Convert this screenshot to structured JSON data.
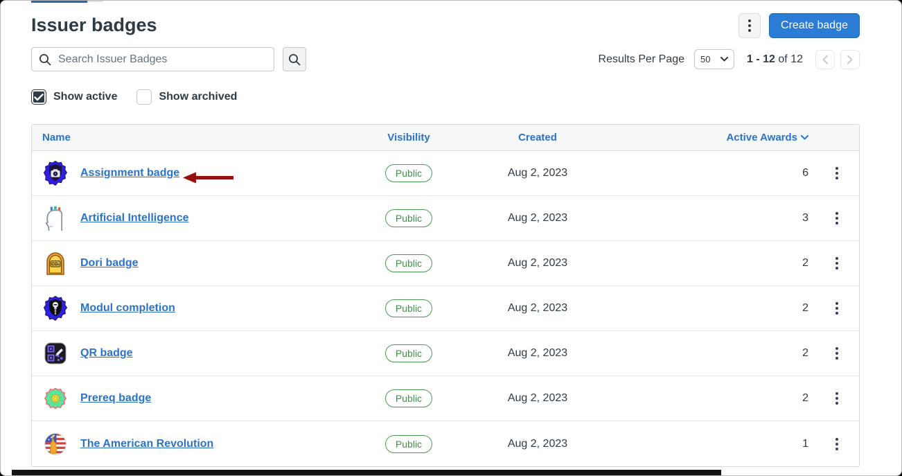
{
  "page": {
    "title": "Issuer badges"
  },
  "toolbar": {
    "create_badge_label": "Create badge"
  },
  "search": {
    "placeholder": "Search Issuer Badges"
  },
  "pagination": {
    "results_per_page_label": "Results Per Page",
    "per_page_value": "50",
    "range_text": "1 - 12",
    "of_text": "of 12"
  },
  "filters": {
    "show_active": {
      "label": "Show active",
      "checked": true
    },
    "show_archived": {
      "label": "Show archived",
      "checked": false
    }
  },
  "table": {
    "columns": {
      "name": "Name",
      "visibility": "Visibility",
      "created": "Created",
      "active_awards": "Active Awards"
    },
    "rows": [
      {
        "name": "Assignment badge",
        "icon": "assignment-camera-badge-icon",
        "visibility": "Public",
        "created": "Aug 2, 2023",
        "active_awards": "6"
      },
      {
        "name": "Artificial Intelligence",
        "icon": "head-with-tools-badge-icon",
        "visibility": "Public",
        "created": "Aug 2, 2023",
        "active_awards": "3"
      },
      {
        "name": "Dori badge",
        "icon": "co2-badge-icon",
        "visibility": "Public",
        "created": "Aug 2, 2023",
        "active_awards": "2"
      },
      {
        "name": "Modul completion",
        "icon": "screw-shield-badge-icon",
        "visibility": "Public",
        "created": "Aug 2, 2023",
        "active_awards": "2"
      },
      {
        "name": "QR badge",
        "icon": "qr-code-badge-icon",
        "visibility": "Public",
        "created": "Aug 2, 2023",
        "active_awards": "2"
      },
      {
        "name": "Prereq badge",
        "icon": "flower-badge-icon",
        "visibility": "Public",
        "created": "Aug 2, 2023",
        "active_awards": "2"
      },
      {
        "name": "The American Revolution",
        "icon": "us-flag-badge-icon",
        "visibility": "Public",
        "created": "Aug 2, 2023",
        "active_awards": "1"
      }
    ]
  },
  "colors": {
    "accent_blue": "#2b7cd5",
    "link_blue": "#2b73c8",
    "ink": "#2d3b45",
    "success_green": "#3f8f46",
    "annotation_red": "#970f0f"
  }
}
